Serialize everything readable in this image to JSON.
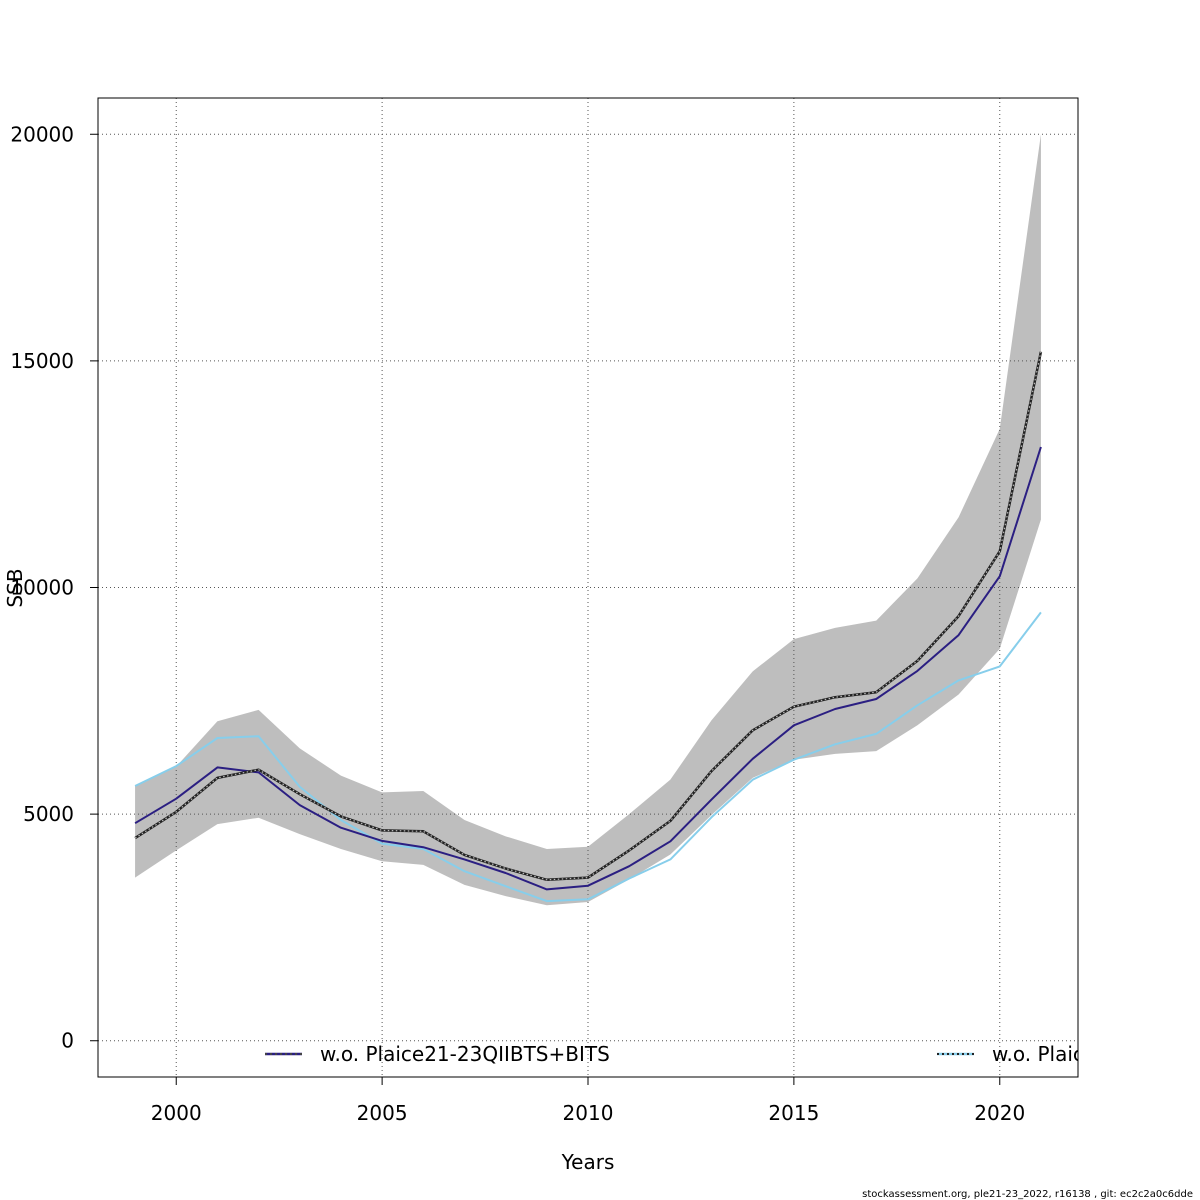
{
  "chart_data": {
    "type": "line",
    "title": "",
    "xlabel": "Years",
    "ylabel": "SSB",
    "xlim": [
      1998.1,
      2021.9
    ],
    "ylim": [
      -800,
      20800
    ],
    "xticks": [
      2000,
      2005,
      2010,
      2015,
      2020
    ],
    "yticks": [
      0,
      5000,
      10000,
      15000,
      20000
    ],
    "grid": true,
    "legend_position": "bottom",
    "x": [
      1999,
      2000,
      2001,
      2002,
      2003,
      2004,
      2005,
      2006,
      2007,
      2008,
      2009,
      2010,
      2011,
      2012,
      2013,
      2014,
      2015,
      2016,
      2017,
      2018,
      2019,
      2020,
      2021
    ],
    "band": {
      "lower": [
        3600,
        4200,
        4780,
        4920,
        4560,
        4230,
        3960,
        3880,
        3440,
        3190,
        2990,
        3060,
        3560,
        4110,
        4980,
        5800,
        6200,
        6330,
        6390,
        6960,
        7640,
        8650,
        11500
      ],
      "upper": [
        5640,
        6050,
        7050,
        7300,
        6450,
        5850,
        5480,
        5510,
        4870,
        4510,
        4230,
        4280,
        5000,
        5760,
        7070,
        8150,
        8860,
        9110,
        9270,
        10200,
        11550,
        13500,
        20000
      ],
      "color": "#bebebe"
    },
    "series": [
      {
        "values": [
          4470,
          5050,
          5800,
          5980,
          5440,
          4950,
          4640,
          4620,
          4100,
          3800,
          3550,
          3600,
          4200,
          4850,
          5950,
          6850,
          7370,
          7580,
          7690,
          8380,
          9370,
          10800,
          15200
        ],
        "color": "#222222",
        "style": "dotted"
      },
      {
        "name": "w.o. Plaice21-23QIIBTS+BITS",
        "values": [
          4800,
          5340,
          6030,
          5920,
          5200,
          4700,
          4410,
          4270,
          4000,
          3700,
          3340,
          3420,
          3850,
          4400,
          5320,
          6220,
          6960,
          7320,
          7540,
          8160,
          8950,
          10250,
          13100
        ],
        "color": "#2b1f82"
      },
      {
        "name": "w.o. Plaic",
        "values": [
          5620,
          6060,
          6680,
          6720,
          5600,
          4870,
          4350,
          4230,
          3740,
          3410,
          3080,
          3120,
          3580,
          4000,
          4930,
          5760,
          6200,
          6540,
          6770,
          7400,
          7950,
          8260,
          9450
        ],
        "color": "#87ceeb"
      }
    ]
  },
  "footer": "stockassessment.org, ple21-23_2022, r16138 , git: ec2c2a0c6dde",
  "colors": {
    "grid": "#555555",
    "axis": "#000000",
    "background": "#ffffff"
  }
}
